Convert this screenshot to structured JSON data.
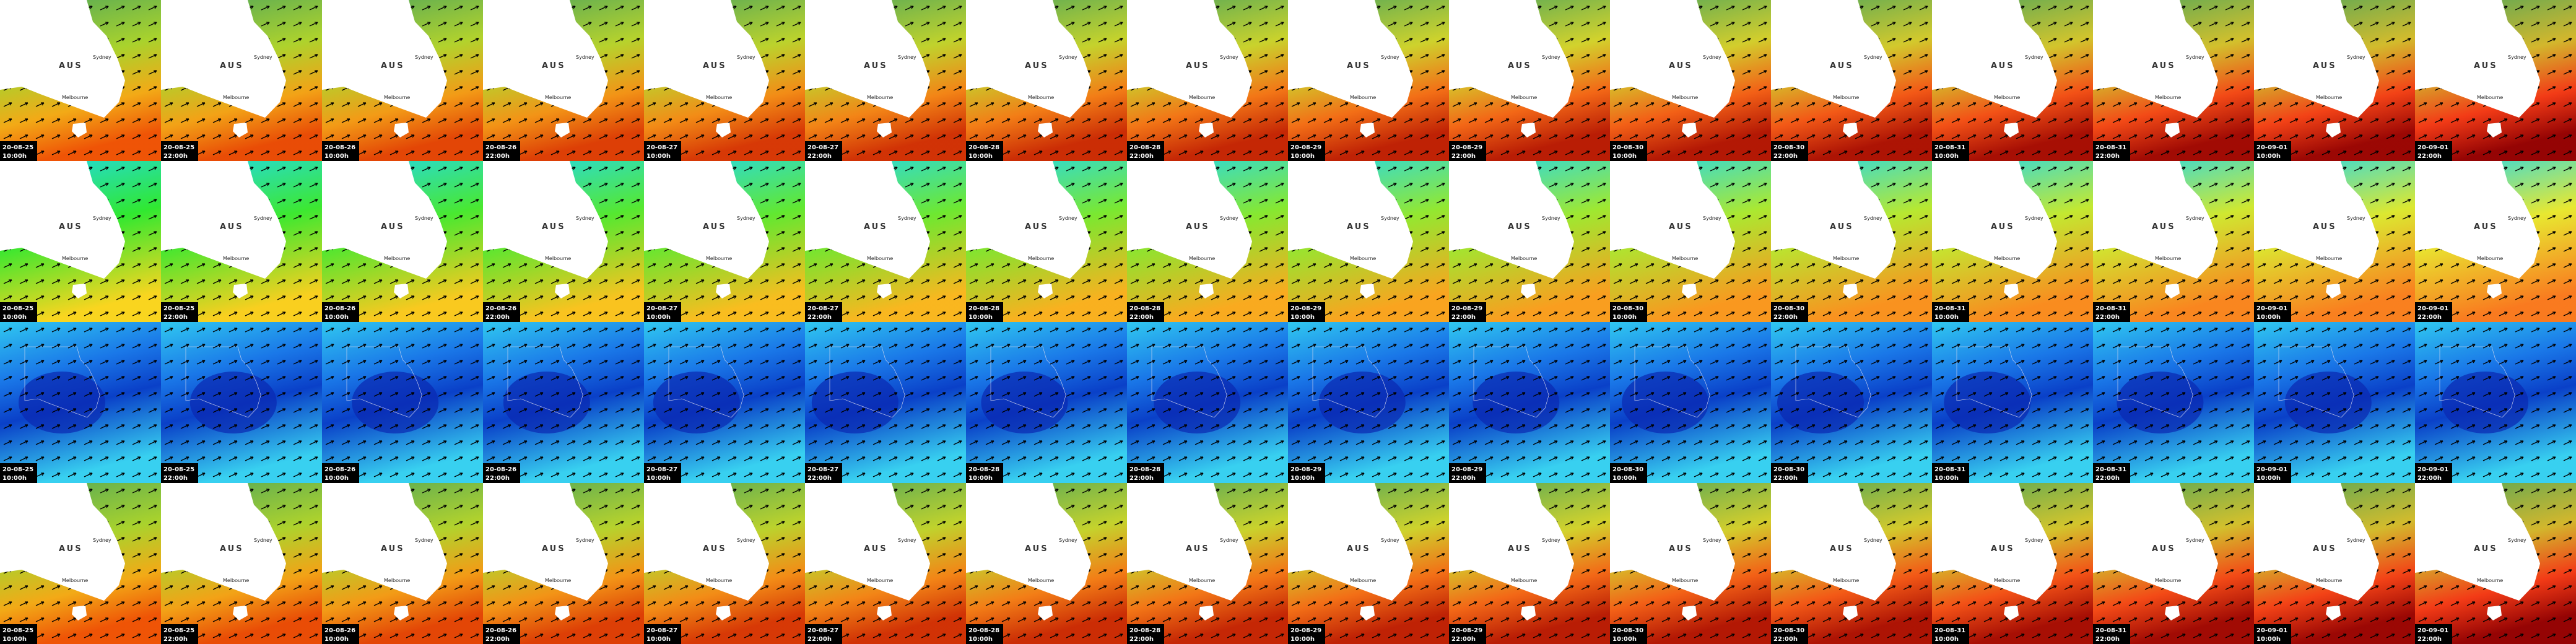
{
  "columns": [
    {
      "date": "20-08-25",
      "time": "10:00h"
    },
    {
      "date": "20-08-25",
      "time": "22:00h"
    },
    {
      "date": "20-08-26",
      "time": "10:00h"
    },
    {
      "date": "20-08-26",
      "time": "22:00h"
    },
    {
      "date": "20-08-27",
      "time": "10:00h"
    },
    {
      "date": "20-08-27",
      "time": "22:00h"
    },
    {
      "date": "20-08-28",
      "time": "10:00h"
    },
    {
      "date": "20-08-28",
      "time": "22:00h"
    },
    {
      "date": "20-08-29",
      "time": "10:00h"
    },
    {
      "date": "20-08-29",
      "time": "22:00h"
    },
    {
      "date": "20-08-30",
      "time": "10:00h"
    },
    {
      "date": "20-08-30",
      "time": "22:00h"
    },
    {
      "date": "20-08-31",
      "time": "10:00h"
    },
    {
      "date": "20-08-31",
      "time": "22:00h"
    },
    {
      "date": "20-09-01",
      "time": "10:00h"
    },
    {
      "date": "20-09-01",
      "time": "22:00h"
    }
  ],
  "map_labels": {
    "country": "AUS",
    "city_north": "Sydney",
    "city_south": "Melbourne"
  }
}
